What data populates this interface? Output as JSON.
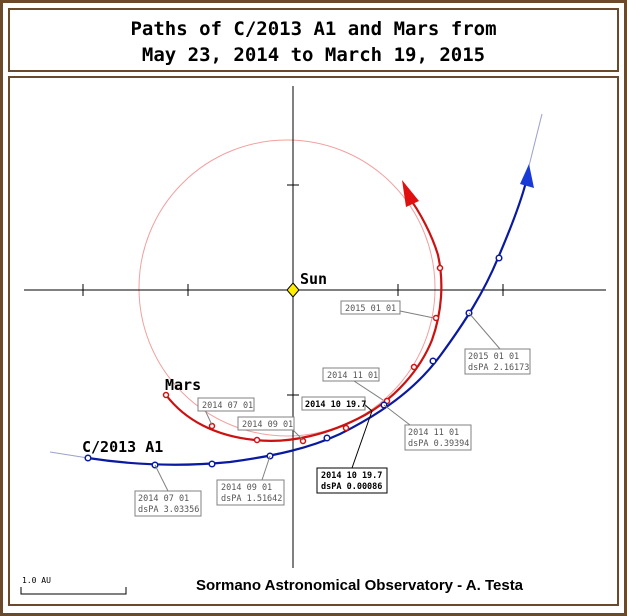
{
  "title": {
    "line1": "Paths of C/2013 A1 and Mars from",
    "line2": "May 23, 2014 to March 19, 2015"
  },
  "labels": {
    "sun": "Sun",
    "mars": "Mars",
    "comet": "C/2013 A1",
    "scale": "1.0 AU",
    "credit": "Sormano Astronomical Observatory - A. Testa"
  },
  "mars_boxes": [
    {
      "text": "2015 01 01"
    },
    {
      "text": "2014 11 01"
    },
    {
      "text": "2014 10 19.7"
    },
    {
      "text": "2014 09 01"
    },
    {
      "text": "2014 07 01"
    }
  ],
  "comet_boxes": [
    {
      "line1": "2015  01  01",
      "line2": "dsPA 2.16173"
    },
    {
      "line1": "2014  11  01",
      "line2": "dsPA 0.39394"
    },
    {
      "line1": "2014 10 19.7",
      "line2": "dsPA 0.00086"
    },
    {
      "line1": "2014  09  01",
      "line2": "dsPA 1.51642"
    },
    {
      "line1": "2014  07  01",
      "line2": "dsPA 3.03356"
    }
  ],
  "colors": {
    "frame": "#6b4a2b",
    "mars_path": "#cc1111",
    "mars_orbit": "#f2a0a0",
    "comet_path": "#0a1aa0",
    "comet_arrow": "#1a3ad8",
    "sun": "#ffee00",
    "axis": "#000000",
    "label_box": "#808080"
  }
}
